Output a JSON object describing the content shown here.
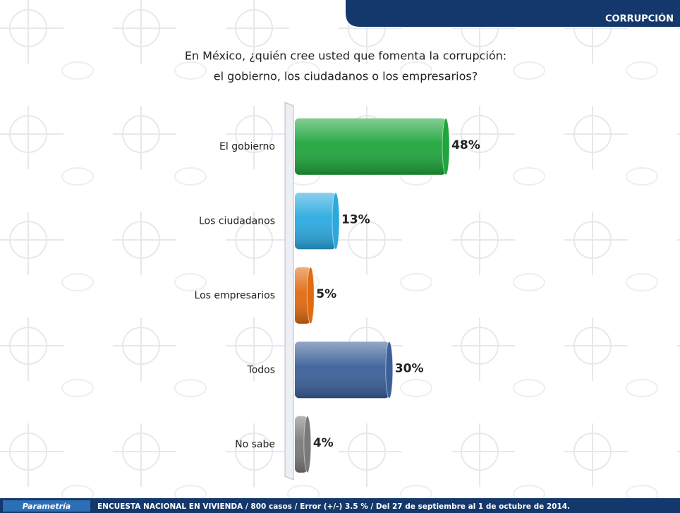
{
  "header": {
    "section": "CORRUPCIÓN"
  },
  "chart_data": {
    "type": "hbar",
    "title": [
      "En México, ¿quién cree usted que fomenta la corrupción:",
      "el gobierno, los ciudadanos o los empresarios?"
    ],
    "categories": [
      "El gobierno",
      "Los ciudadanos",
      "Los empresarios",
      "Todos",
      "No sabe"
    ],
    "values": [
      48,
      13,
      5,
      30,
      4
    ],
    "value_labels": [
      "48%",
      "13%",
      "5%",
      "30%",
      "4%"
    ],
    "colors": [
      "#1fa53c",
      "#2aa9e0",
      "#e06b12",
      "#3b5f99",
      "#7a7a7a"
    ]
  },
  "footer": {
    "brand": "Parametría",
    "note": "ENCUESTA NACIONAL EN VIVIENDA / 800 casos / Error (+/-) 3.5 % / Del 27 de septiembre al 1 de octubre de 2014."
  }
}
